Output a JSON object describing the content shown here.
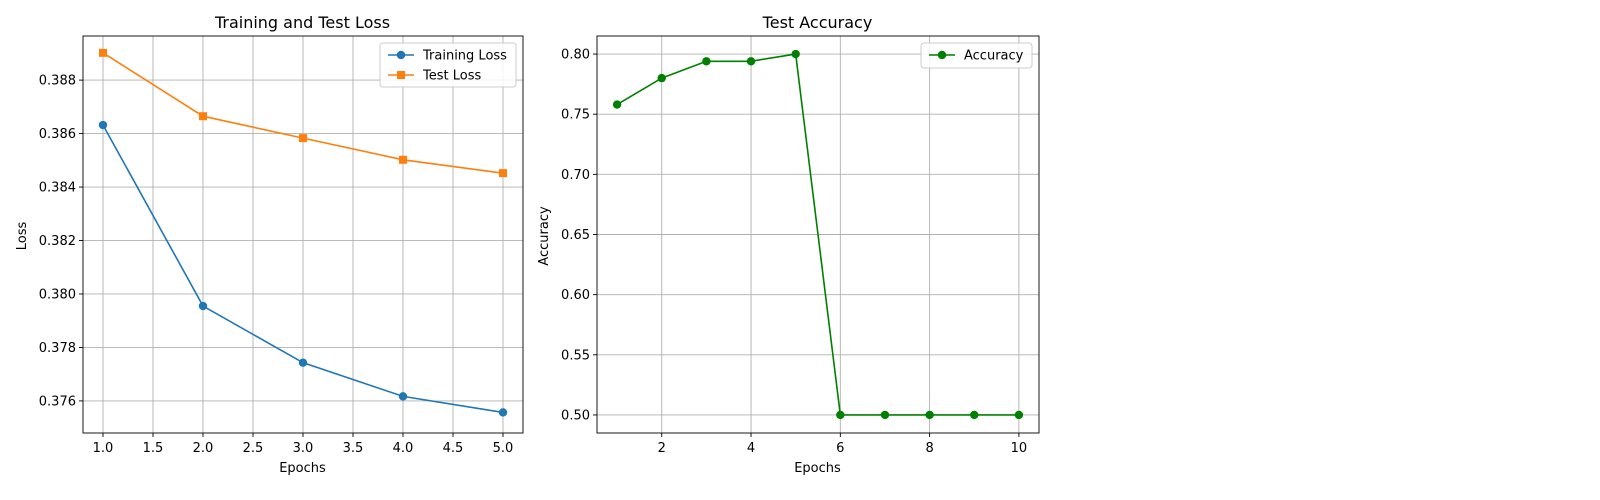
{
  "chart_data": [
    {
      "type": "line",
      "title": "Training and Test Loss",
      "xlabel": "Epochs",
      "ylabel": "Loss",
      "xlim": [
        0.8,
        5.2
      ],
      "ylim": [
        0.3748,
        0.38965
      ],
      "xticks": [
        1.0,
        1.5,
        2.0,
        2.5,
        3.0,
        3.5,
        4.0,
        4.5,
        5.0
      ],
      "xtick_labels": [
        "1.0",
        "1.5",
        "2.0",
        "2.5",
        "3.0",
        "3.5",
        "4.0",
        "4.5",
        "5.0"
      ],
      "yticks": [
        0.376,
        0.378,
        0.38,
        0.382,
        0.384,
        0.386,
        0.388
      ],
      "ytick_labels": [
        "0.376",
        "0.378",
        "0.380",
        "0.382",
        "0.384",
        "0.386",
        "0.388"
      ],
      "grid": true,
      "legend_position": "upper right",
      "x": [
        1,
        2,
        3,
        4,
        5
      ],
      "series": [
        {
          "name": "Training Loss",
          "values": [
            0.38632,
            0.37955,
            0.37743,
            0.37617,
            0.37557
          ],
          "color": "#1f77b4",
          "marker": "circle"
        },
        {
          "name": "Test Loss",
          "values": [
            0.38902,
            0.38665,
            0.38583,
            0.38502,
            0.38452
          ],
          "color": "#ff7f0e",
          "marker": "square"
        }
      ]
    },
    {
      "type": "line",
      "title": "Test Accuracy",
      "xlabel": "Epochs",
      "ylabel": "Accuracy",
      "xlim": [
        0.55,
        10.45
      ],
      "ylim": [
        0.485,
        0.815
      ],
      "xticks": [
        2,
        4,
        6,
        8,
        10
      ],
      "xtick_labels": [
        "2",
        "4",
        "6",
        "8",
        "10"
      ],
      "yticks": [
        0.5,
        0.55,
        0.6,
        0.65,
        0.7,
        0.75,
        0.8
      ],
      "ytick_labels": [
        "0.50",
        "0.55",
        "0.60",
        "0.65",
        "0.70",
        "0.75",
        "0.80"
      ],
      "grid": true,
      "legend_position": "upper right",
      "x": [
        1,
        2,
        3,
        4,
        5,
        6,
        7,
        8,
        9,
        10
      ],
      "series": [
        {
          "name": "Accuracy",
          "values": [
            0.758,
            0.78,
            0.794,
            0.794,
            0.8,
            0.5,
            0.5,
            0.5,
            0.5,
            0.5
          ],
          "color": "#008000",
          "marker": "circle"
        }
      ]
    }
  ]
}
